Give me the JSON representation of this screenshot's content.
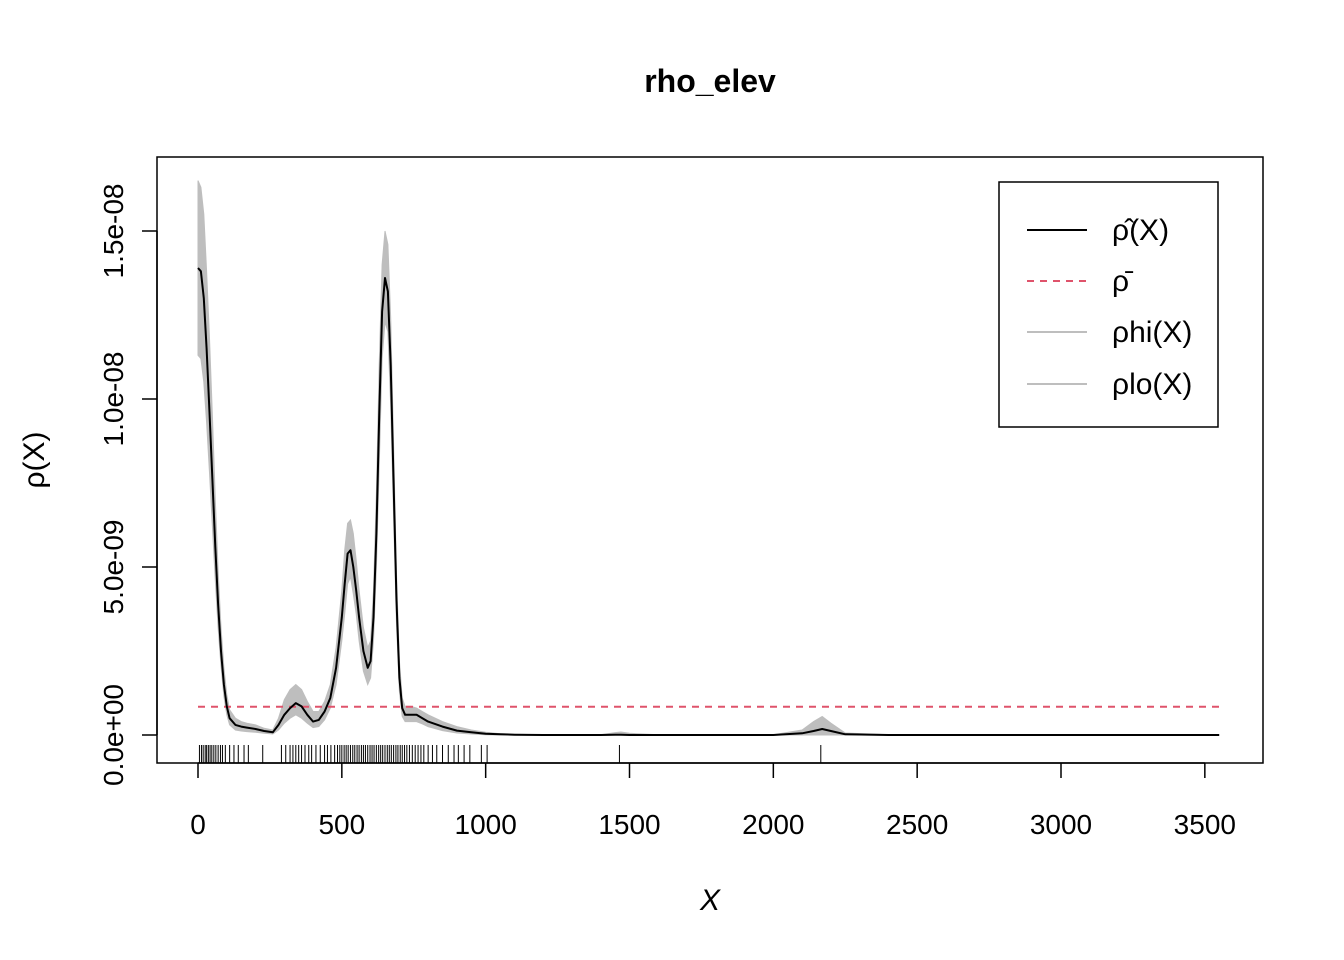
{
  "chart_data": {
    "type": "line",
    "title": "rho_elev",
    "xlabel": "X",
    "ylabel": "ρ(X)",
    "xlim": [
      0,
      3550
    ],
    "ylim": [
      0,
      1.6e-08
    ],
    "x_ticks": [
      0,
      500,
      1000,
      1500,
      2000,
      2500,
      3000,
      3500
    ],
    "x_tick_labels": [
      "0",
      "500",
      "1000",
      "1500",
      "2000",
      "2500",
      "3000",
      "3500"
    ],
    "y_ticks": [
      0,
      5e-09,
      1e-08,
      1.5e-08
    ],
    "y_tick_labels": [
      "0.0e+00",
      "5.0e-09",
      "1.0e-08",
      "1.5e-08"
    ],
    "legend_position": "top-right",
    "legend": [
      {
        "label": "ρ̂(X)",
        "style": "solid",
        "color": "#000000"
      },
      {
        "label": "ρ̄",
        "style": "dashed",
        "color": "#DF536B"
      },
      {
        "label": "ρhi(X)",
        "style": "solid",
        "color": "#BEBEBE"
      },
      {
        "label": "ρlo(X)",
        "style": "solid",
        "color": "#BEBEBE"
      }
    ],
    "rho_bar": 8.4e-10,
    "x": [
      0,
      10,
      20,
      30,
      40,
      50,
      60,
      70,
      80,
      90,
      100,
      110,
      130,
      150,
      170,
      200,
      230,
      260,
      280,
      300,
      320,
      340,
      360,
      380,
      400,
      420,
      440,
      460,
      480,
      500,
      510,
      520,
      530,
      540,
      550,
      560,
      575,
      590,
      600,
      610,
      620,
      630,
      640,
      650,
      660,
      670,
      680,
      690,
      700,
      710,
      720,
      740,
      760,
      780,
      800,
      850,
      900,
      950,
      1000,
      1050,
      1100,
      1200,
      1300,
      1400,
      1450,
      1470,
      1500,
      1600,
      1800,
      2000,
      2100,
      2140,
      2170,
      2200,
      2250,
      2400,
      2600,
      2800,
      3000,
      3200,
      3400,
      3550
    ],
    "series": [
      {
        "name": "ρ̂(X)",
        "values": [
          1.39e-08,
          1.38e-08,
          1.3e-08,
          1.15e-08,
          9.6e-09,
          7.6e-09,
          5.6e-09,
          3.9e-09,
          2.5e-09,
          1.5e-09,
          8.5e-10,
          5e-10,
          3e-10,
          2.5e-10,
          2.2e-10,
          1.8e-10,
          1.2e-10,
          8e-11,
          3e-10,
          6e-10,
          8e-10,
          9.5e-10,
          8.5e-10,
          6e-10,
          4e-10,
          4.5e-10,
          7e-10,
          1.1e-09,
          2e-09,
          3.5e-09,
          4.5e-09,
          5.4e-09,
          5.5e-09,
          5e-09,
          4.3e-09,
          3.5e-09,
          2.5e-09,
          2e-09,
          2.2e-09,
          3.5e-09,
          6e-09,
          9.5e-09,
          1.26e-08,
          1.36e-08,
          1.32e-08,
          1.1e-08,
          7.5e-09,
          4e-09,
          1.7e-09,
          8e-10,
          6e-10,
          6e-10,
          6e-10,
          5e-10,
          4e-10,
          2.5e-10,
          1.3e-10,
          8e-11,
          4e-11,
          2e-11,
          1e-11,
          0,
          0,
          0,
          1e-11,
          1e-11,
          0,
          0,
          0,
          0,
          5e-11,
          1.2e-10,
          1.8e-10,
          1.2e-10,
          2e-11,
          0,
          0,
          0,
          0,
          0,
          0,
          0
        ]
      },
      {
        "name": "ρhi(X)",
        "values": [
          1.65e-08,
          1.63e-08,
          1.55e-08,
          1.38e-08,
          1.18e-08,
          9.5e-09,
          7e-09,
          4.9e-09,
          3.2e-09,
          2e-09,
          1.2e-09,
          7.5e-10,
          5e-10,
          4e-10,
          3.5e-10,
          3e-10,
          2e-10,
          1.5e-10,
          5e-10,
          1.05e-09,
          1.35e-09,
          1.5e-09,
          1.35e-09,
          1e-09,
          7e-10,
          7e-10,
          1e-09,
          1.5e-09,
          2.6e-09,
          4.3e-09,
          5.5e-09,
          6.3e-09,
          6.4e-09,
          6e-09,
          5.2e-09,
          4.3e-09,
          3.2e-09,
          2.6e-09,
          2.8e-09,
          4.3e-09,
          7.2e-09,
          1.1e-08,
          1.4e-08,
          1.5e-08,
          1.46e-08,
          1.24e-08,
          8.6e-09,
          4.8e-09,
          2.2e-09,
          1.1e-09,
          8.5e-10,
          8.5e-10,
          8e-10,
          7e-10,
          6e-10,
          4e-10,
          2.5e-10,
          1.5e-10,
          8e-11,
          4e-11,
          2e-11,
          1e-11,
          1e-11,
          1e-11,
          7e-11,
          9e-11,
          5e-11,
          1e-11,
          1e-11,
          1e-11,
          1.5e-10,
          4e-10,
          5.5e-10,
          3.5e-10,
          6e-11,
          1e-11,
          0,
          0,
          0,
          0,
          0,
          0
        ]
      },
      {
        "name": "ρlo(X)",
        "values": [
          1.13e-08,
          1.12e-08,
          1.05e-08,
          9.3e-09,
          7.8e-09,
          6.2e-09,
          4.6e-09,
          3.2e-09,
          2.05e-09,
          1.15e-09,
          6e-10,
          3e-10,
          1.5e-10,
          1.2e-10,
          1e-10,
          8e-11,
          5e-11,
          3e-11,
          1.5e-10,
          3.5e-10,
          5e-10,
          6e-10,
          5e-10,
          3.5e-10,
          2.2e-10,
          2.5e-10,
          4.5e-10,
          8e-10,
          1.5e-09,
          2.8e-09,
          3.6e-09,
          4.5e-09,
          4.7e-09,
          4.2e-09,
          3.6e-09,
          2.8e-09,
          1.9e-09,
          1.5e-09,
          1.7e-09,
          2.8e-09,
          5e-09,
          8e-09,
          1.12e-08,
          1.23e-08,
          1.2e-08,
          9.8e-09,
          6.5e-09,
          3.3e-09,
          1.3e-09,
          5.5e-10,
          4e-10,
          4e-10,
          4e-10,
          3.3e-10,
          2.5e-10,
          1.3e-10,
          6e-11,
          3e-11,
          1e-11,
          0,
          0,
          0,
          0,
          0,
          0,
          0,
          0,
          0,
          0,
          0,
          0,
          0,
          0,
          0,
          0,
          0,
          0,
          0,
          0,
          0,
          0,
          0
        ]
      }
    ],
    "rug": [
      5,
      12,
      18,
      25,
      30,
      36,
      42,
      48,
      55,
      62,
      70,
      78,
      85,
      95,
      110,
      125,
      140,
      160,
      175,
      225,
      290,
      305,
      320,
      330,
      340,
      350,
      360,
      372,
      385,
      395,
      410,
      425,
      440,
      450,
      462,
      475,
      485,
      493,
      500,
      508,
      515,
      522,
      530,
      538,
      545,
      553,
      560,
      568,
      575,
      582,
      590,
      598,
      605,
      612,
      620,
      628,
      635,
      642,
      650,
      658,
      665,
      672,
      680,
      688,
      695,
      703,
      710,
      718,
      726,
      735,
      745,
      755,
      765,
      775,
      785,
      800,
      815,
      830,
      850,
      870,
      890,
      905,
      925,
      945,
      985,
      1005,
      1465,
      2165
    ]
  }
}
